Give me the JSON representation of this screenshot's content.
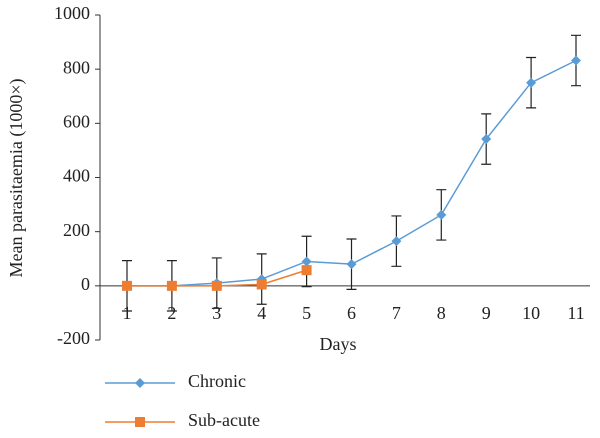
{
  "chart_data": {
    "type": "line",
    "x_label": "Days",
    "y_label": "Mean parasitaemia (1000×)",
    "categories": [
      "1",
      "2",
      "3",
      "4",
      "5",
      "6",
      "7",
      "8",
      "9",
      "10",
      "11"
    ],
    "series": [
      {
        "name": "Chronic",
        "color": "#5b9bd5",
        "marker": "diamond",
        "values": [
          0,
          0,
          10,
          25,
          90,
          80,
          165,
          262,
          542,
          750,
          832
        ],
        "errors": [
          93,
          93,
          93,
          93,
          93,
          93,
          93,
          93,
          93,
          93,
          93
        ]
      },
      {
        "name": "Sub-acute",
        "color": "#ed7d31",
        "marker": "square",
        "values": [
          0,
          0,
          0,
          5,
          58,
          null,
          null,
          null,
          null,
          null,
          null
        ]
      }
    ],
    "ylim": [
      -200,
      1000
    ],
    "yticks": [
      -200,
      0,
      200,
      400,
      600,
      800,
      1000
    ],
    "legend": "bottom"
  }
}
